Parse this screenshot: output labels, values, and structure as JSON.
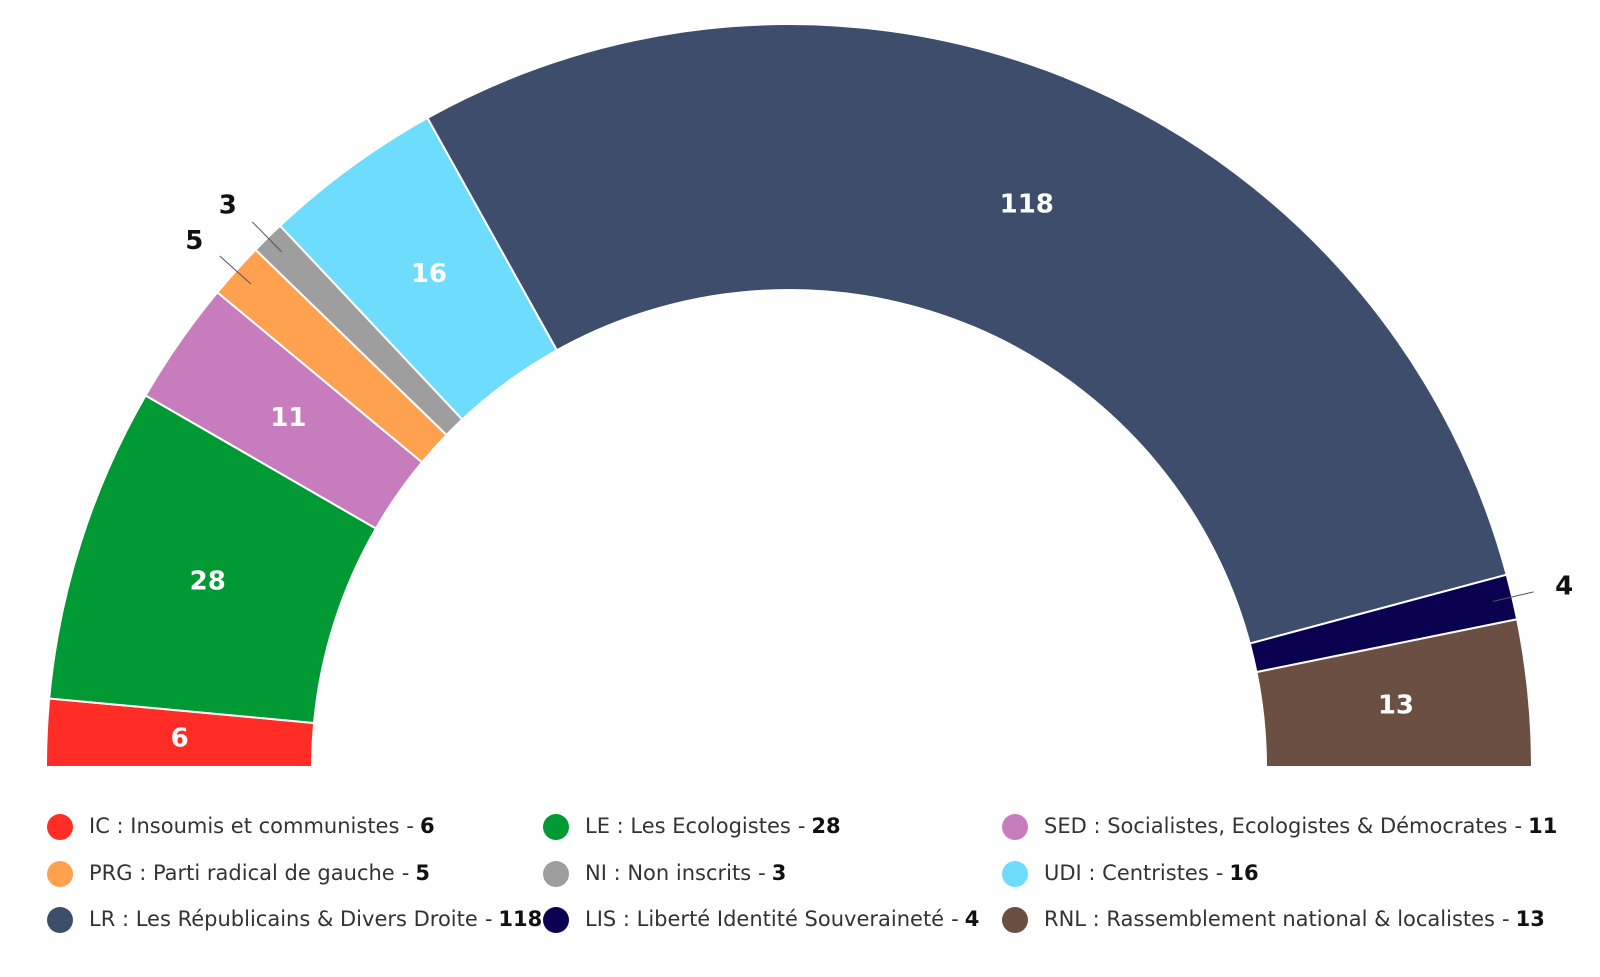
{
  "chart_data": {
    "type": "parliament",
    "legend_separator": "-",
    "series": [
      {
        "name": "IC : Insoumis et communistes",
        "color": "#ff2d26",
        "values": [
          6
        ]
      },
      {
        "name": "LE : Les Ecologistes",
        "color": "#009933",
        "values": [
          28
        ]
      },
      {
        "name": "SED : Socialistes, Ecologistes & Démocrates",
        "color": "#c77dbd",
        "values": [
          11
        ]
      },
      {
        "name": "PRG : Parti radical de gauche",
        "color": "#ffa14f",
        "values": [
          5
        ]
      },
      {
        "name": "NI : Non inscrits",
        "color": "#9e9e9e",
        "values": [
          3
        ]
      },
      {
        "name": "UDI : Centristes",
        "color": "#6edcfc",
        "values": [
          16
        ]
      },
      {
        "name": "LR : Les Républicains & Divers Droite",
        "color": "#3d4d6b",
        "values": [
          118
        ]
      },
      {
        "name": "LIS : Liberté Identité Souveraineté",
        "color": "#0a0050",
        "values": [
          4
        ]
      },
      {
        "name": "RNL : Rassemblement national & localistes",
        "color": "#6b4f43",
        "values": [
          13
        ]
      }
    ]
  }
}
